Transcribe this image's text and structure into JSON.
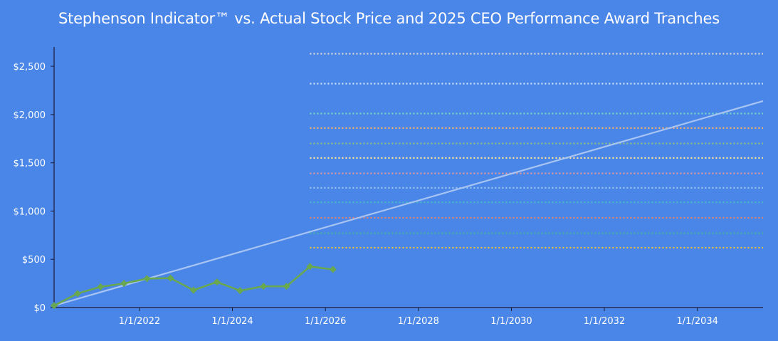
{
  "chart_data": {
    "type": "line",
    "title": "Stephenson Indicator™ vs. Actual Stock Price and 2025 CEO Performance Award Tranches",
    "xlabel": "",
    "ylabel": "",
    "ylim": [
      0,
      2700
    ],
    "xlim": [
      "2020-03-01",
      "2035-06-01"
    ],
    "grid": false,
    "legend": "none",
    "y_ticks": [
      {
        "value": 0,
        "label": "$0"
      },
      {
        "value": 500,
        "label": "$500"
      },
      {
        "value": 1000,
        "label": "$1,000"
      },
      {
        "value": 1500,
        "label": "$1,500"
      },
      {
        "value": 2000,
        "label": "$2,000"
      },
      {
        "value": 2500,
        "label": "$2,500"
      }
    ],
    "x_ticks": [
      {
        "value": "2022-01-01",
        "label": "1/1/2022"
      },
      {
        "value": "2024-01-01",
        "label": "1/1/2024"
      },
      {
        "value": "2026-01-01",
        "label": "1/1/2026"
      },
      {
        "value": "2028-01-01",
        "label": "1/1/2028"
      },
      {
        "value": "2030-01-01",
        "label": "1/1/2030"
      },
      {
        "value": "2032-01-01",
        "label": "1/1/2032"
      },
      {
        "value": "2034-01-01",
        "label": "1/1/2034"
      }
    ],
    "series": [
      {
        "kind": "indicator",
        "color": "#a8c4f2",
        "points": [
          {
            "x": "2020-03-01",
            "y": 20
          },
          {
            "x": "2035-06-01",
            "y": 2140
          }
        ]
      },
      {
        "kind": "stock_price",
        "color": "#6aa84f",
        "marker": "diamond",
        "points": [
          {
            "x": "2020-03-01",
            "y": 20
          },
          {
            "x": "2020-09-01",
            "y": 145
          },
          {
            "x": "2021-03-01",
            "y": 215
          },
          {
            "x": "2021-09-01",
            "y": 250
          },
          {
            "x": "2022-03-01",
            "y": 300
          },
          {
            "x": "2022-09-01",
            "y": 305
          },
          {
            "x": "2023-03-01",
            "y": 180
          },
          {
            "x": "2023-09-01",
            "y": 265
          },
          {
            "x": "2024-03-01",
            "y": 175
          },
          {
            "x": "2024-09-01",
            "y": 220
          },
          {
            "x": "2025-03-01",
            "y": 220
          },
          {
            "x": "2025-09-01",
            "y": 425
          },
          {
            "x": "2026-03-01",
            "y": 395
          }
        ]
      }
    ],
    "tranches": {
      "x_start": "2025-09-01",
      "x_end": "2035-06-01",
      "style": "dotted",
      "levels": [
        {
          "y": 620,
          "color": "#f1c232"
        },
        {
          "y": 770,
          "color": "#44b39b"
        },
        {
          "y": 930,
          "color": "#e8846b"
        },
        {
          "y": 1090,
          "color": "#46bdc6"
        },
        {
          "y": 1240,
          "color": "#9fc5e8"
        },
        {
          "y": 1390,
          "color": "#ea9999"
        },
        {
          "y": 1550,
          "color": "#ffe599"
        },
        {
          "y": 1700,
          "color": "#93c47d"
        },
        {
          "y": 1860,
          "color": "#f6b26b"
        },
        {
          "y": 2010,
          "color": "#76d7c4"
        },
        {
          "y": 2320,
          "color": "#cfe2f3"
        },
        {
          "y": 2630,
          "color": "#d9d9d9"
        }
      ]
    }
  }
}
